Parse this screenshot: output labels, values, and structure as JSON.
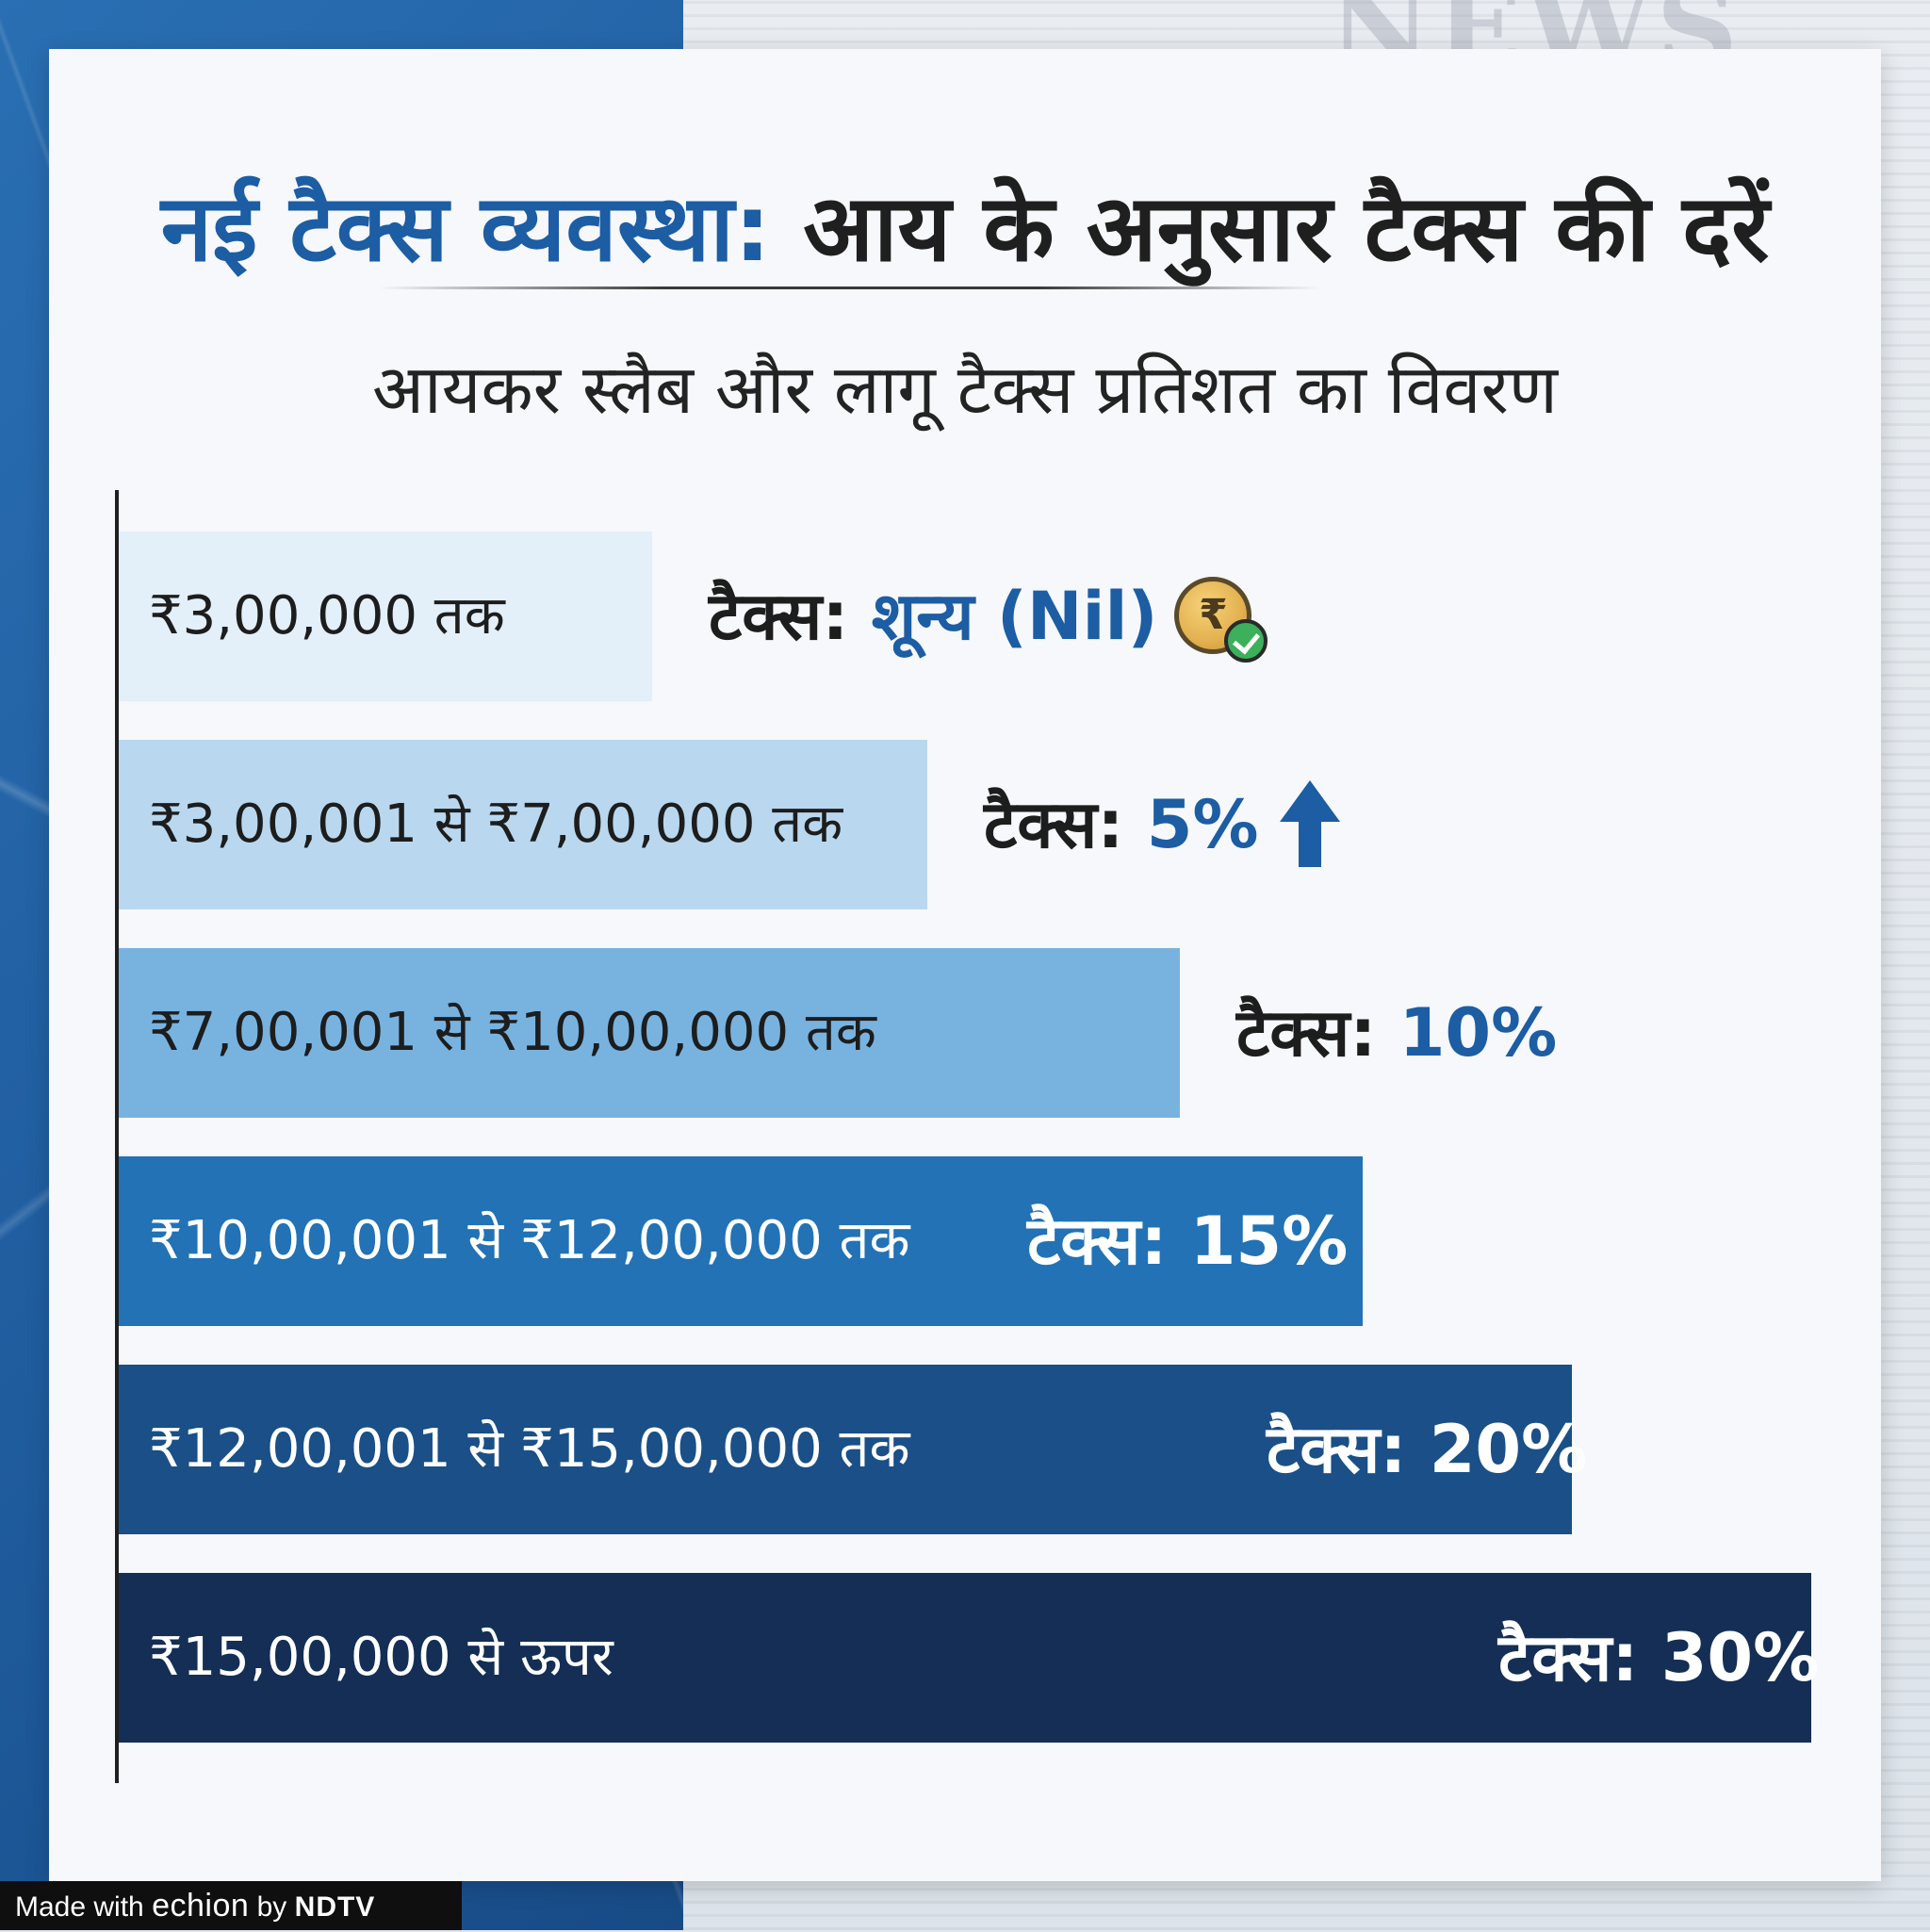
{
  "title": {
    "part1": "नई टैक्स व्यवस्था:",
    "part2": "आय के अनुसार टैक्स की दरें"
  },
  "subtitle": "आयकर स्लैब और लागू टैक्स प्रतिशत का विवरण",
  "footer": {
    "made_with": "Made with",
    "brand": "echion",
    "by": "by",
    "publisher": "NDTV"
  },
  "colors": {
    "accent": "#1c5da3",
    "bar_shades": [
      "#e3eff9",
      "#b9d8ef",
      "#78b3e0",
      "#2272b5",
      "#1a4f87",
      "#142e55"
    ]
  },
  "icons": [
    "rupee-coin-check-icon",
    "up-arrow-icon"
  ],
  "chart_data": {
    "type": "bar",
    "orientation": "horizontal",
    "title": "नई टैक्स व्यवस्था: आय के अनुसार टैक्स की दरें",
    "subtitle": "आयकर स्लैब और लागू टैक्स प्रतिशत का विवरण",
    "categories": [
      "₹3,00,000 तक",
      "₹3,00,001 से ₹7,00,000 तक",
      "₹7,00,001 से ₹10,00,000 तक",
      "₹10,00,001 से ₹12,00,000 तक",
      "₹12,00,001 से ₹15,00,000 तक",
      "₹15,00,000 से ऊपर"
    ],
    "rate_label": "टैक्स:",
    "rate_texts": [
      "शून्य (Nil)",
      "5%",
      "10%",
      "15%",
      "20%",
      "30%"
    ],
    "values": [
      0,
      5,
      10,
      15,
      20,
      30
    ],
    "xlabel": "",
    "ylabel": "",
    "grid": false,
    "legend": "none"
  }
}
